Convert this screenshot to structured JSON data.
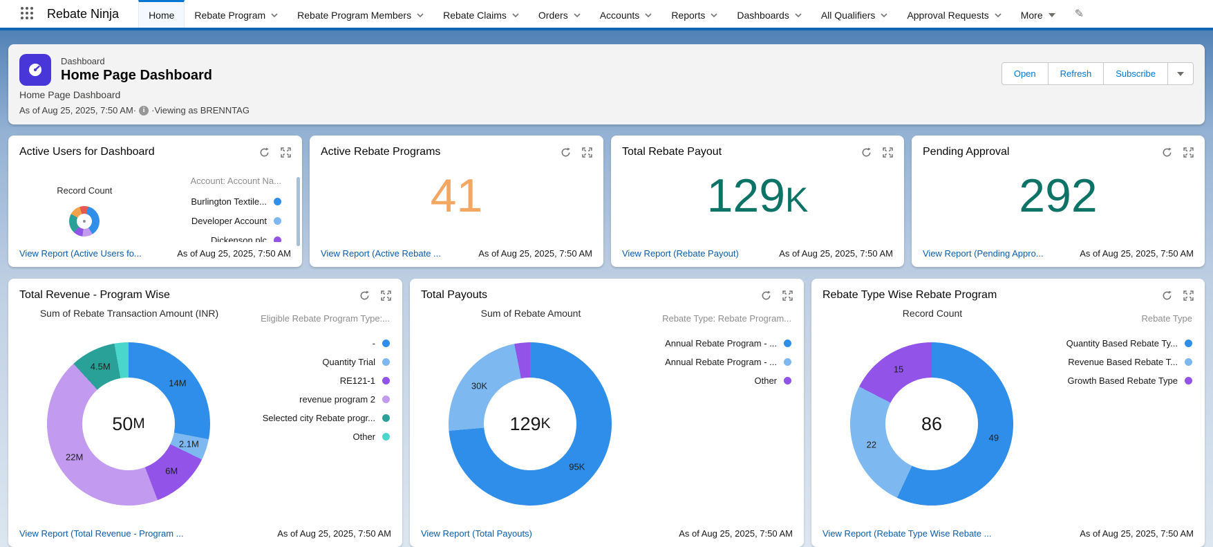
{
  "app": {
    "name": "Rebate Ninja"
  },
  "nav": {
    "tabs": [
      {
        "label": "Home",
        "active": true
      },
      {
        "label": "Rebate Program"
      },
      {
        "label": "Rebate Program Members"
      },
      {
        "label": "Rebate Claims"
      },
      {
        "label": "Orders"
      },
      {
        "label": "Accounts"
      },
      {
        "label": "Reports"
      },
      {
        "label": "Dashboards"
      },
      {
        "label": "All Qualifiers"
      },
      {
        "label": "Approval Requests"
      },
      {
        "label": "More"
      }
    ]
  },
  "header": {
    "type_label": "Dashboard",
    "title": "Home Page Dashboard",
    "subtitle": "Home Page Dashboard",
    "as_of": "As of Aug 25, 2025, 7:50 AM·",
    "viewing_as": "·Viewing as BRENNTAG",
    "buttons": {
      "open": "Open",
      "refresh": "Refresh",
      "subscribe": "Subscribe"
    }
  },
  "colors": {
    "blue": "#2E8EE9",
    "light_blue": "#7EB8F0",
    "violet": "#9254E8",
    "lavender": "#C29BF0",
    "teal": "#2AA198",
    "light_teal": "#4BD6CB",
    "coral": "#E8584F",
    "orange_seg": "#F2A24B",
    "metric_orange": "#F4A762",
    "metric_teal": "#0D7366",
    "link": "#0B5CAB",
    "brand": "#0176D3"
  },
  "row1": [
    {
      "title": "Active Users for Dashboard",
      "chart_label": "Record Count",
      "donut": {
        "segments": [
          {
            "value": 4,
            "color": "#E8584F"
          },
          {
            "value": 37,
            "color": "#2E8EE9"
          },
          {
            "value": 11,
            "color": "#C29BF0"
          },
          {
            "value": 10,
            "color": "#9254E8"
          },
          {
            "value": 21,
            "color": "#2AA198"
          },
          {
            "value": 12,
            "color": "#F2A24B"
          },
          {
            "value": 5,
            "color": "#E8584F"
          }
        ]
      },
      "legend": {
        "header": "Account: Account Na...",
        "items": [
          {
            "label": "Burlington Textile...",
            "color": "#2E8EE9"
          },
          {
            "label": "Developer Account",
            "color": "#7EB8F0"
          },
          {
            "label": "Dickenson plc",
            "color": "#9254E8"
          }
        ]
      },
      "footer_link": "View Report (Active Users fo...",
      "as_of": "As of Aug 25, 2025, 7:50 AM"
    },
    {
      "title": "Active Rebate Programs",
      "metric": {
        "value": "41",
        "suffix": "",
        "color": "#F4A762"
      },
      "footer_link": "View Report (Active Rebate ...",
      "as_of": "As of Aug 25, 2025, 7:50 AM"
    },
    {
      "title": "Total Rebate Payout",
      "metric": {
        "value": "129",
        "suffix": "K",
        "color": "#0D7366"
      },
      "footer_link": "View Report (Rebate Payout)",
      "as_of": "As of Aug 25, 2025, 7:50 AM"
    },
    {
      "title": "Pending Approval",
      "metric": {
        "value": "292",
        "suffix": "",
        "color": "#0D7366"
      },
      "footer_link": "View Report (Pending Appro...",
      "as_of": "As of Aug 25, 2025, 7:50 AM"
    }
  ],
  "row2": [
    {
      "title": "Total Revenue - Program Wise",
      "chart_label": "Sum of Rebate Transaction Amount (INR)",
      "donut": {
        "center_value": "50",
        "center_suffix": "M",
        "segments": [
          {
            "label": "14M",
            "value": 14,
            "color": "#2E8EE9"
          },
          {
            "label": "2.1M",
            "value": 2.1,
            "color": "#7EB8F0"
          },
          {
            "label": "6M",
            "value": 6,
            "color": "#9254E8"
          },
          {
            "label": "22M",
            "value": 22,
            "color": "#C29BF0"
          },
          {
            "label": "4.5M",
            "value": 4.5,
            "color": "#2AA198"
          },
          {
            "label": "",
            "value": 1.4,
            "color": "#4BD6CB"
          }
        ]
      },
      "legend": {
        "header": "Eligible Rebate Program Type:...",
        "items": [
          {
            "label": "-",
            "color": "#2E8EE9"
          },
          {
            "label": "Quantity Trial",
            "color": "#7EB8F0"
          },
          {
            "label": "RE121-1",
            "color": "#9254E8"
          },
          {
            "label": "revenue program 2",
            "color": "#C29BF0"
          },
          {
            "label": "Selected city Rebate progr...",
            "color": "#2AA198"
          },
          {
            "label": "Other",
            "color": "#4BD6CB"
          }
        ]
      },
      "footer_link": "View Report (Total Revenue - Program ...",
      "as_of": "As of Aug 25, 2025, 7:50 AM"
    },
    {
      "title": "Total Payouts",
      "chart_label": "Sum of Rebate Amount",
      "donut": {
        "center_value": "129",
        "center_suffix": "K",
        "segments": [
          {
            "label": "95K",
            "value": 95,
            "color": "#2E8EE9"
          },
          {
            "label": "30K",
            "value": 30,
            "color": "#7EB8F0"
          },
          {
            "label": "",
            "value": 4,
            "color": "#9254E8"
          }
        ]
      },
      "legend": {
        "header": "Rebate Type: Rebate Program...",
        "items": [
          {
            "label": "Annual Rebate Program - ...",
            "color": "#2E8EE9"
          },
          {
            "label": "Annual Rebate Program - ...",
            "color": "#7EB8F0"
          },
          {
            "label": "Other",
            "color": "#9254E8"
          }
        ]
      },
      "footer_link": "View Report (Total Payouts)",
      "as_of": "As of Aug 25, 2025, 7:50 AM"
    },
    {
      "title": "Rebate Type Wise Rebate Program",
      "chart_label": "Record Count",
      "donut": {
        "center_value": "86",
        "center_suffix": "",
        "segments": [
          {
            "label": "49",
            "value": 49,
            "color": "#2E8EE9"
          },
          {
            "label": "22",
            "value": 22,
            "color": "#7EB8F0"
          },
          {
            "label": "15",
            "value": 15,
            "color": "#9254E8"
          }
        ]
      },
      "legend": {
        "header": "Rebate Type",
        "items": [
          {
            "label": "Quantity Based Rebate Ty...",
            "color": "#2E8EE9"
          },
          {
            "label": "Revenue Based Rebate T...",
            "color": "#7EB8F0"
          },
          {
            "label": "Growth Based Rebate Type",
            "color": "#9254E8"
          }
        ]
      },
      "footer_link": "View Report (Rebate Type Wise Rebate ...",
      "as_of": "As of Aug 25, 2025, 7:50 AM"
    }
  ],
  "chart_data": [
    {
      "type": "pie",
      "title": "Active Users for Dashboard",
      "measure": "Record Count",
      "categories": [
        "Burlington Textile...",
        "Developer Account",
        "Dickenson plc"
      ],
      "values_shown": false,
      "legend_position": "right"
    },
    {
      "type": "pie",
      "title": "Total Revenue - Program Wise",
      "measure": "Sum of Rebate Transaction Amount (INR)",
      "center_total": "50M",
      "categories": [
        "-",
        "Quantity Trial",
        "RE121-1",
        "revenue program 2",
        "Selected city Rebate progr...",
        "Other"
      ],
      "values": [
        14,
        2.1,
        6,
        22,
        4.5,
        1.4
      ],
      "unit": "M",
      "legend_position": "right"
    },
    {
      "type": "pie",
      "title": "Total Payouts",
      "measure": "Sum of Rebate Amount",
      "center_total": "129K",
      "categories": [
        "Annual Rebate Program - ...",
        "Annual Rebate Program - ...",
        "Other"
      ],
      "values": [
        95,
        30,
        4
      ],
      "unit": "K",
      "legend_position": "right"
    },
    {
      "type": "pie",
      "title": "Rebate Type Wise Rebate Program",
      "measure": "Record Count",
      "center_total": "86",
      "categories": [
        "Quantity Based Rebate Ty...",
        "Revenue Based Rebate T...",
        "Growth Based Rebate Type"
      ],
      "values": [
        49,
        22,
        15
      ],
      "legend_position": "right"
    }
  ]
}
